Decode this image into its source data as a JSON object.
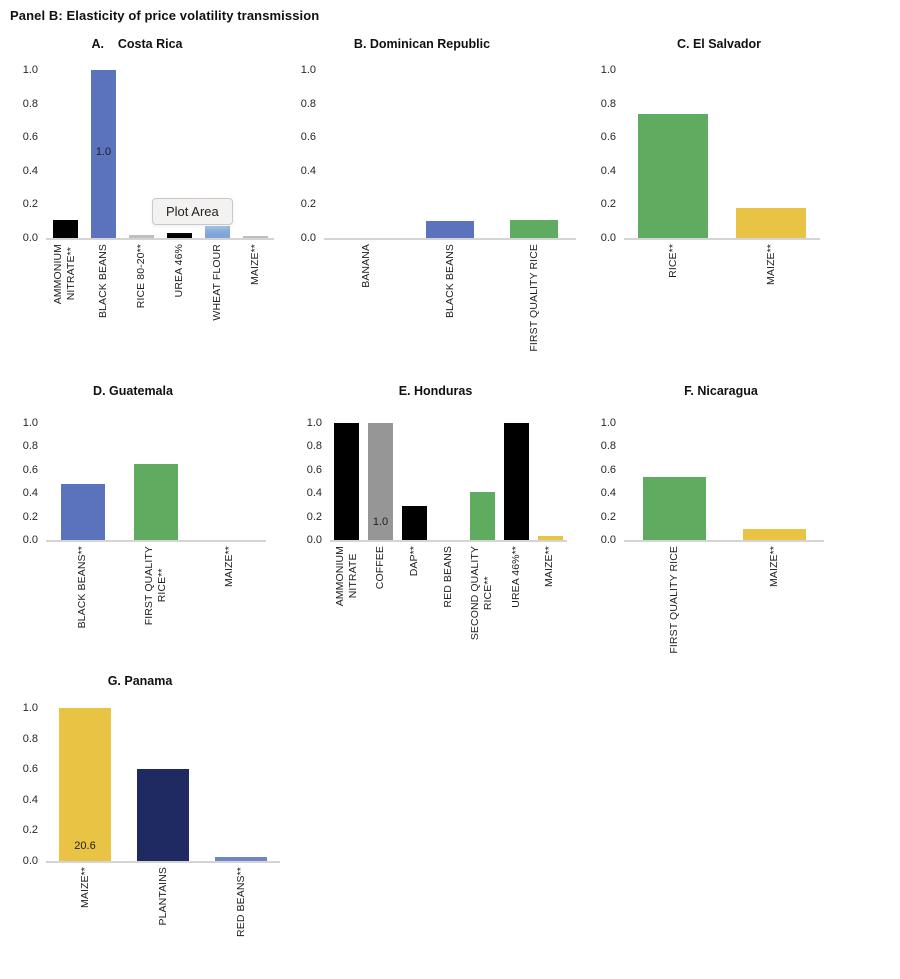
{
  "panel_title": "Panel B: Elasticity of price volatility transmission",
  "tooltip": {
    "label": "Plot Area"
  },
  "y_axis": {
    "ticks": [
      "1.0",
      "0.8",
      "0.6",
      "0.4",
      "0.2",
      "0.0"
    ],
    "min": 0.0,
    "max": 1.0
  },
  "palette": {
    "black": "#000000",
    "blue": "#5B72BC",
    "light_blue": "#7EA4D8",
    "panama_light_blue": "#6F85C5",
    "green": "#5FAC60",
    "yellow": "#E9C344",
    "gray": "#969696",
    "light_gray": "#BFBFBF",
    "navy": "#1F2A63",
    "axis_line": "#D4D4D4"
  },
  "chart_data": [
    {
      "id": "costa-rica",
      "type": "bar",
      "title": "A.    Costa Rica",
      "ylim": [
        0,
        1.0
      ],
      "grid": false,
      "legend": false,
      "categories": [
        "AMMONIUM NITRATE**",
        "BLACK BEANS",
        "RICE 80-20**",
        "UREA 46%",
        "WHEAT FLOUR",
        "MAIZE**"
      ],
      "bars": [
        {
          "label": "AMMONIUM\nNITRATE**",
          "value": 0.11,
          "color": "#000000"
        },
        {
          "label": "BLACK BEANS",
          "value": 1.0,
          "color": "#5B72BC",
          "data_label": "1.0",
          "label_frac": 0.47
        },
        {
          "label": "RICE 80-20**",
          "value": 0.02,
          "color": "#BFBFBF"
        },
        {
          "label": "UREA 46%",
          "value": 0.03,
          "color": "#000000"
        },
        {
          "label": "WHEAT FLOUR",
          "value": 0.07,
          "color": "#7EA4D8"
        },
        {
          "label": "MAIZE**",
          "value": 0.01,
          "color": "#BFBFBF"
        }
      ]
    },
    {
      "id": "dominican-republic",
      "type": "bar",
      "title": "B. Dominican Republic",
      "ylim": [
        0,
        1.0
      ],
      "grid": false,
      "legend": false,
      "categories": [
        "BANANA",
        "BLACK BEANS",
        "FIRST QUALITY RICE"
      ],
      "bars": [
        {
          "label": "BANANA",
          "value": 0.0,
          "color": "#5B72BC"
        },
        {
          "label": "BLACK BEANS",
          "value": 0.1,
          "color": "#5B72BC"
        },
        {
          "label": "FIRST QUALITY RICE",
          "value": 0.11,
          "color": "#5FAC60"
        }
      ]
    },
    {
      "id": "el-salvador",
      "type": "bar",
      "title": "C. El Salvador",
      "ylim": [
        0,
        1.0
      ],
      "grid": false,
      "legend": false,
      "categories": [
        "RICE**",
        "MAIZE**"
      ],
      "bars": [
        {
          "label": "RICE**",
          "value": 0.74,
          "color": "#5FAC60"
        },
        {
          "label": "MAIZE**",
          "value": 0.18,
          "color": "#E9C344"
        }
      ]
    },
    {
      "id": "guatemala",
      "type": "bar",
      "title": "D. Guatemala",
      "ylim": [
        0,
        1.0
      ],
      "grid": false,
      "legend": false,
      "categories": [
        "BLACK BEANS**",
        "FIRST QUALITY RICE**",
        "MAIZE**"
      ],
      "bars": [
        {
          "label": "BLACK BEANS**",
          "value": 0.48,
          "color": "#5B72BC"
        },
        {
          "label": "FIRST QUALITY\nRICE**",
          "value": 0.65,
          "color": "#5FAC60"
        },
        {
          "label": "MAIZE**",
          "value": 0.0,
          "color": "#E9C344"
        }
      ]
    },
    {
      "id": "honduras",
      "type": "bar",
      "title": "E. Honduras",
      "ylim": [
        0,
        1.0
      ],
      "grid": false,
      "legend": false,
      "categories": [
        "AMMONIUM NITRATE",
        "COFFEE",
        "DAP**",
        "RED BEANS",
        "SECOND QUALITY RICE**",
        "UREA 46%**",
        "MAIZE**"
      ],
      "bars": [
        {
          "label": "AMMONIUM\nNITRATE",
          "value": 1.0,
          "color": "#000000"
        },
        {
          "label": "COFFEE",
          "value": 1.0,
          "color": "#969696",
          "data_label": "1.0",
          "label_frac": 0.09
        },
        {
          "label": "DAP**",
          "value": 0.29,
          "color": "#000000"
        },
        {
          "label": "RED BEANS",
          "value": 0.0,
          "color": "#000000"
        },
        {
          "label": "SECOND QUALITY\nRICE**",
          "value": 0.41,
          "color": "#5FAC60"
        },
        {
          "label": "UREA 46%**",
          "value": 1.0,
          "color": "#000000"
        },
        {
          "label": "MAIZE**",
          "value": 0.03,
          "color": "#E9C344"
        }
      ]
    },
    {
      "id": "nicaragua",
      "type": "bar",
      "title": "F. Nicaragua",
      "ylim": [
        0,
        1.0
      ],
      "grid": false,
      "legend": false,
      "categories": [
        "FIRST QUALITY RICE",
        "MAIZE**"
      ],
      "bars": [
        {
          "label": "FIRST QUALITY RICE",
          "value": 0.54,
          "color": "#5FAC60"
        },
        {
          "label": "MAIZE**",
          "value": 0.09,
          "color": "#E9C344"
        }
      ]
    },
    {
      "id": "panama",
      "type": "bar",
      "title": "G. Panama",
      "ylim": [
        0,
        1.0
      ],
      "grid": false,
      "legend": false,
      "categories": [
        "MAIZE**",
        "PLANTAINS",
        "RED BEANS**"
      ],
      "bars": [
        {
          "label": "MAIZE**",
          "value": 1.0,
          "color": "#E9C344",
          "data_label": "20.6",
          "label_frac": 0.05
        },
        {
          "label": "PLANTAINS",
          "value": 0.6,
          "color": "#1F2A63"
        },
        {
          "label": "RED BEANS**",
          "value": 0.025,
          "color": "#6F85C5"
        }
      ]
    }
  ]
}
